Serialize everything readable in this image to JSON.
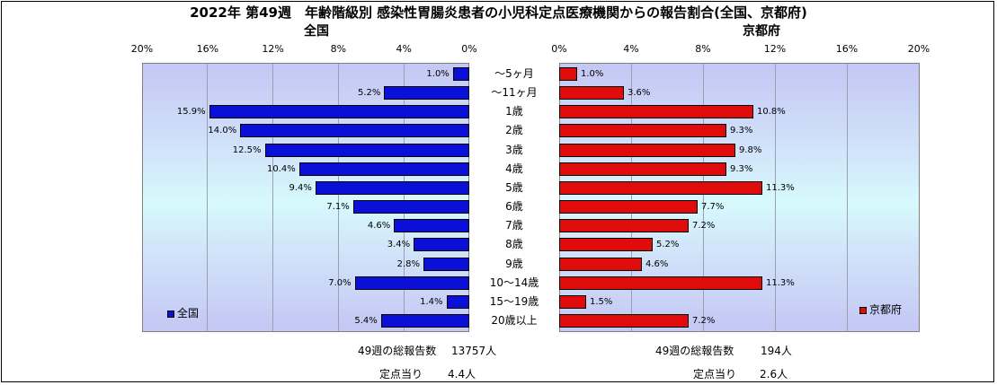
{
  "title": "2022年 第49週　年齢階級別 感染性胃腸炎患者の小児科定点医療機関からの報告割合(全国、京都府)",
  "panels": {
    "national_title": "全国",
    "kyoto_title": "京都府"
  },
  "colors": {
    "national": "#0a10d8",
    "kyoto": "#e00c0c"
  },
  "legend": {
    "national": "全国",
    "kyoto": "京都府"
  },
  "footer": {
    "national_total_label": "49週の総報告数",
    "national_total_value": "13757人",
    "national_per_label": "定点当り",
    "national_per_value": "4.4人",
    "kyoto_total_label": "49週の総報告数",
    "kyoto_total_value": "194人",
    "kyoto_per_label": "定点当り",
    "kyoto_per_value": "2.6人"
  },
  "chart_data": {
    "type": "bar",
    "orientation": "horizontal",
    "title": "2022年 第49週　年齢階級別 感染性胃腸炎患者の小児科定点医療機関からの報告割合(全国、京都府)",
    "categories": [
      "～5ヶ月",
      "～11ヶ月",
      "1歳",
      "2歳",
      "3歳",
      "4歳",
      "5歳",
      "6歳",
      "7歳",
      "8歳",
      "9歳",
      "10～14歳",
      "15～19歳",
      "20歳以上"
    ],
    "series": [
      {
        "name": "全国",
        "values": [
          1.0,
          5.2,
          15.9,
          14.0,
          12.5,
          10.4,
          9.4,
          7.1,
          4.6,
          3.4,
          2.8,
          7.0,
          1.4,
          5.4
        ],
        "labels": [
          "1.0%",
          "5.2%",
          "15.9%",
          "14.0%",
          "12.5%",
          "10.4%",
          "9.4%",
          "7.1%",
          "4.6%",
          "3.4%",
          "2.8%",
          "7.0%",
          "1.4%",
          "5.4%"
        ]
      },
      {
        "name": "京都府",
        "values": [
          1.0,
          3.6,
          10.8,
          9.3,
          9.8,
          9.3,
          11.3,
          7.7,
          7.2,
          5.2,
          4.6,
          11.3,
          1.5,
          7.2
        ],
        "labels": [
          "1.0%",
          "3.6%",
          "10.8%",
          "9.3%",
          "9.8%",
          "9.3%",
          "11.3%",
          "7.7%",
          "7.2%",
          "5.2%",
          "4.6%",
          "11.3%",
          "1.5%",
          "7.2%"
        ]
      }
    ],
    "xlim": [
      0,
      20
    ],
    "national_ticks": [
      "20%",
      "16%",
      "12%",
      "8%",
      "4%",
      "0%"
    ],
    "kyoto_ticks": [
      "0%",
      "4%",
      "8%",
      "12%",
      "16%",
      "20%"
    ],
    "grid": true,
    "legend_position": "bottom-left / bottom-right inside plots"
  }
}
